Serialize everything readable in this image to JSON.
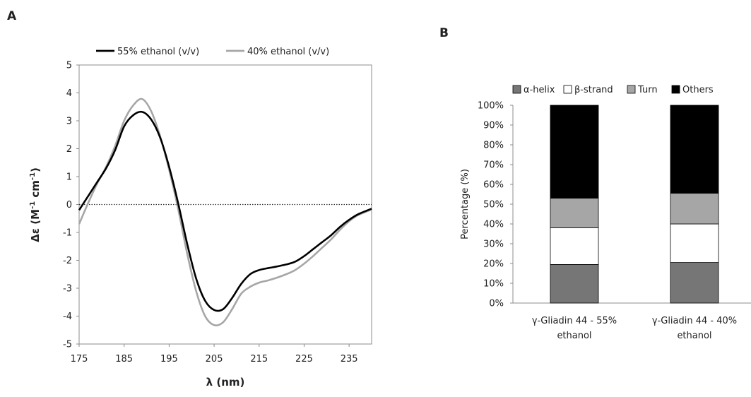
{
  "chart_data": [
    {
      "type": "line",
      "panel_label": "A",
      "xlabel": "λ (nm)",
      "ylabel": "Δε (M-1 cm-1)",
      "xlim": [
        175,
        240
      ],
      "ylim": [
        -5,
        5
      ],
      "xticks": [
        175,
        185,
        195,
        205,
        215,
        225,
        235
      ],
      "yticks": [
        5,
        4,
        3,
        2,
        1,
        0,
        -1,
        -2,
        -3,
        -4,
        -5
      ],
      "zero_line": "dotted",
      "grid": false,
      "legend_position": "top",
      "series": [
        {
          "name": "55% ethanol (v/v)",
          "color": "#000000",
          "x": [
            175,
            177,
            179,
            181,
            183,
            185,
            187,
            189,
            191,
            193,
            195,
            197,
            199,
            201,
            203,
            205,
            207,
            209,
            211,
            213,
            215,
            217,
            219,
            221,
            223,
            225,
            227,
            229,
            231,
            233,
            235,
            237,
            240
          ],
          "y": [
            -0.2,
            0.3,
            0.8,
            1.3,
            1.95,
            2.8,
            3.2,
            3.32,
            3.05,
            2.4,
            1.35,
            0.05,
            -1.4,
            -2.65,
            -3.45,
            -3.78,
            -3.75,
            -3.35,
            -2.85,
            -2.5,
            -2.35,
            -2.28,
            -2.22,
            -2.15,
            -2.05,
            -1.85,
            -1.6,
            -1.35,
            -1.1,
            -0.8,
            -0.55,
            -0.35,
            -0.15
          ]
        },
        {
          "name": "40% ethanol (v/v)",
          "color": "#a6a6a6",
          "x": [
            175,
            177,
            179,
            181,
            183,
            185,
            187,
            189,
            191,
            193,
            195,
            197,
            199,
            201,
            203,
            205,
            207,
            209,
            211,
            213,
            215,
            217,
            219,
            221,
            223,
            225,
            227,
            229,
            231,
            233,
            235,
            237,
            240
          ],
          "y": [
            -0.7,
            0.05,
            0.75,
            1.35,
            2.1,
            3.0,
            3.55,
            3.78,
            3.35,
            2.45,
            1.25,
            -0.15,
            -1.75,
            -3.1,
            -4.0,
            -4.32,
            -4.22,
            -3.75,
            -3.2,
            -2.95,
            -2.8,
            -2.72,
            -2.62,
            -2.5,
            -2.35,
            -2.12,
            -1.85,
            -1.55,
            -1.25,
            -0.9,
            -0.6,
            -0.38,
            -0.18
          ]
        }
      ]
    },
    {
      "type": "bar",
      "stacked": true,
      "panel_label": "B",
      "ylabel": "Percentage (%)",
      "ylim": [
        0,
        100
      ],
      "yticks": [
        "0%",
        "10%",
        "20%",
        "30%",
        "40%",
        "50%",
        "60%",
        "70%",
        "80%",
        "90%",
        "100%"
      ],
      "grid": false,
      "legend_position": "top",
      "categories": [
        [
          "γ-Gliadin 44 - 55%",
          "ethanol"
        ],
        [
          "γ-Gliadin 44 - 40%",
          "ethanol"
        ]
      ],
      "series": [
        {
          "name": "α-helix",
          "color": "#767676",
          "values": [
            19.5,
            20.5
          ]
        },
        {
          "name": "β-strand",
          "color": "#ffffff",
          "values": [
            18.5,
            19.5
          ]
        },
        {
          "name": "Turn",
          "color": "#a6a6a6",
          "values": [
            15,
            15.5
          ]
        },
        {
          "name": "Others",
          "color": "#000000",
          "values": [
            47,
            44.5
          ]
        }
      ]
    }
  ]
}
